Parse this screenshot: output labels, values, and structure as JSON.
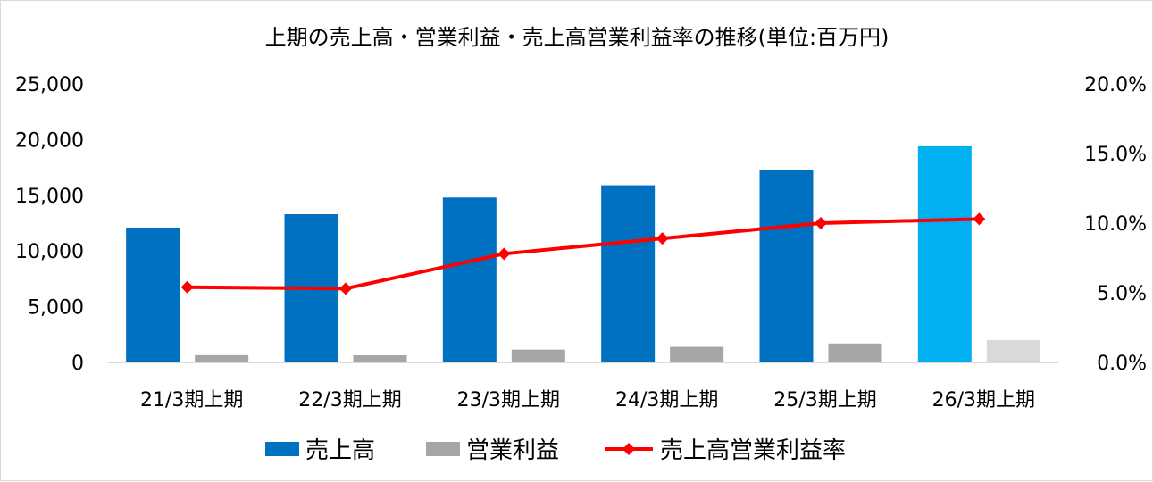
{
  "chart_data": {
    "type": "bar",
    "title": "上期の売上高・営業利益・売上高営業利益率の推移(単位:百万円)",
    "categories": [
      "21/3期上期",
      "22/3期上期",
      "23/3期上期",
      "24/3期上期",
      "25/3期上期",
      "26/3期上期"
    ],
    "series": [
      {
        "name": "売上高",
        "type": "bar",
        "axis": "left",
        "values": [
          12100,
          13300,
          14800,
          15900,
          17300,
          19400
        ],
        "color": "#0070c0",
        "highlight_last_color": "#00b0f0"
      },
      {
        "name": "営業利益",
        "type": "bar",
        "axis": "left",
        "values": [
          650,
          640,
          1150,
          1400,
          1700,
          2000
        ],
        "color": "#a6a6a6",
        "highlight_last_color": "#d9d9d9"
      },
      {
        "name": "売上高営業利益率",
        "type": "line",
        "axis": "right",
        "values": [
          5.4,
          5.3,
          7.8,
          8.9,
          10.0,
          10.3
        ],
        "color": "#ff0000"
      }
    ],
    "left_axis": {
      "ylim": [
        0,
        25000
      ],
      "ticks": [
        0,
        5000,
        10000,
        15000,
        20000,
        25000
      ],
      "tick_labels": [
        "0",
        "5,000",
        "10,000",
        "15,000",
        "20,000",
        "25,000"
      ]
    },
    "right_axis": {
      "ylim": [
        0,
        20
      ],
      "ticks": [
        0,
        5,
        10,
        15,
        20
      ],
      "tick_labels": [
        "0.0%",
        "5.0%",
        "10.0%",
        "15.0%",
        "20.0%"
      ]
    },
    "grid": false,
    "legend_position": "bottom"
  }
}
